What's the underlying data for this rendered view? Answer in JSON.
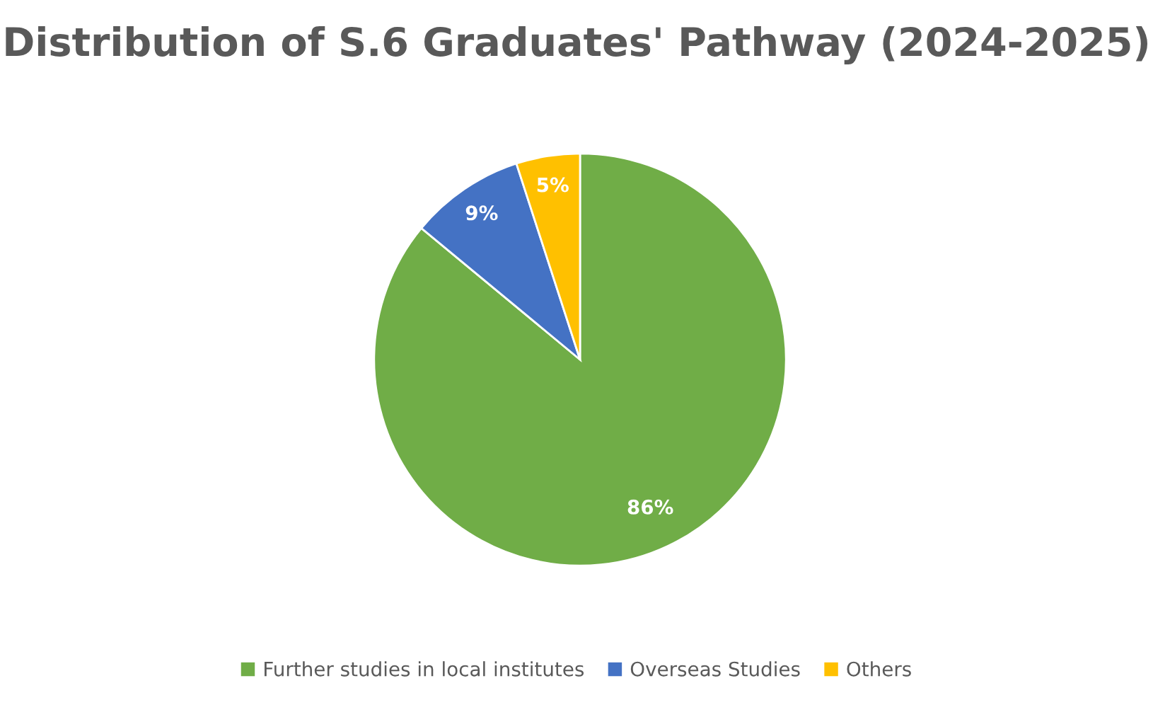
{
  "chart_data": {
    "type": "pie",
    "title": "Distribution of S.6 Graduates' Pathway (2024-2025)",
    "categories": [
      "Further studies in local institutes",
      "Overseas Studies",
      "Others"
    ],
    "values": [
      86,
      9,
      5
    ],
    "colors": [
      "#70ad47",
      "#4472c4",
      "#ffc000"
    ],
    "value_labels": [
      "86%",
      "9%",
      "5%"
    ],
    "legend": "bottom"
  }
}
